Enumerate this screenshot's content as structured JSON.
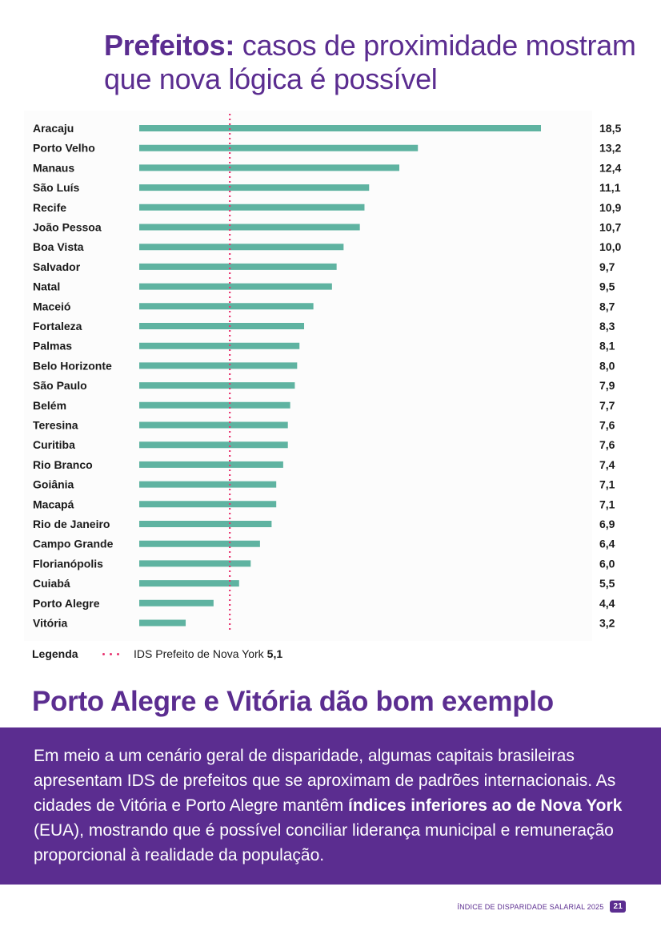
{
  "header": {
    "title_bold": "Prefeitos:",
    "title_rest": " casos de proximidade mostram que nova lógica é possível"
  },
  "chart_data": {
    "type": "bar",
    "orientation": "horizontal",
    "categories": [
      "Aracaju",
      "Porto Velho",
      "Manaus",
      "São Luís",
      "Recife",
      "João Pessoa",
      "Boa Vista",
      "Salvador",
      "Natal",
      "Maceió",
      "Fortaleza",
      "Palmas",
      "Belo Horizonte",
      "São Paulo",
      "Belém",
      "Teresina",
      "Curitiba",
      "Rio Branco",
      "Goiânia",
      "Macapá",
      "Rio de Janeiro",
      "Campo Grande",
      "Florianópolis",
      "Cuiabá",
      "Porto Alegre",
      "Vitória"
    ],
    "values": [
      18.5,
      13.2,
      12.4,
      11.1,
      10.9,
      10.7,
      10.0,
      9.7,
      9.5,
      8.7,
      8.3,
      8.1,
      8.0,
      7.9,
      7.7,
      7.6,
      7.6,
      7.4,
      7.1,
      7.1,
      6.9,
      6.4,
      6.0,
      5.5,
      4.4,
      3.2
    ],
    "value_labels": [
      "18,5",
      "13,2",
      "12,4",
      "11,1",
      "10,9",
      "10,7",
      "10,0",
      "9,7",
      "9,5",
      "8,7",
      "8,3",
      "8,1",
      "8,0",
      "7,9",
      "7,7",
      "7,6",
      "7,6",
      "7,4",
      "7,1",
      "7,1",
      "6,9",
      "6,4",
      "6,0",
      "5,5",
      "4,4",
      "3,2"
    ],
    "xlim": [
      1.2,
      18.5
    ],
    "reference_line": {
      "label": "IDS Prefeito de Nova York",
      "value": 5.1,
      "value_label": "5,1"
    },
    "bar_color": "#5fb3a1",
    "reference_color": "#e8336f"
  },
  "legend": {
    "label": "Legenda",
    "item_text": "IDS Prefeito de Nova York",
    "item_value": "5,1"
  },
  "section": {
    "title": "Porto Alegre e Vitória dão bom exemplo",
    "text_before": "Em meio a um cenário geral de disparidade, algumas capitais brasileiras apresentam IDS de prefeitos que se aproximam de padrões internacio­nais. As cidades de Vitória e Porto Alegre mantêm ",
    "text_bold": "índices inferiores ao de Nova York",
    "text_after": " (EUA), mostrando que é possível conciliar liderança mu­nicipal e remuneração proporcional à realidade da população."
  },
  "footer": {
    "report_name": "ÍNDICE DE DISPARIDADE SALARIAL 2025",
    "page_number": "21"
  },
  "colors": {
    "brand_purple": "#5b2d90",
    "bar_teal": "#5fb3a1",
    "reference_pink": "#e8336f"
  }
}
